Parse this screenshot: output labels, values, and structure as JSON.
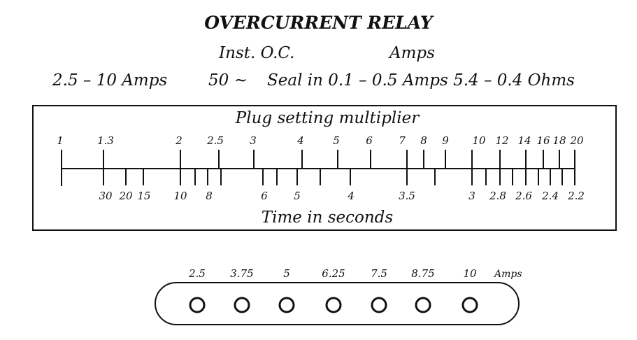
{
  "relay": {
    "title": "OVERCURRENT RELAY",
    "inst_label": "Inst. O.C.",
    "amps_label": "Amps",
    "spec": {
      "range": "2.5 – 10 Amps",
      "frequency": "50 ~",
      "seal_in": "Seal in 0.1 – 0.5 Amps 5.4 – 0.4 Ohms"
    }
  },
  "scale": {
    "title": "Plug setting multiplier",
    "footer": "Time in seconds",
    "psm_labels": [
      "1",
      "1.3",
      "2",
      "2.5",
      "3",
      "4",
      "5",
      "6",
      "7",
      "8",
      "9",
      "10",
      "12",
      "14",
      "16",
      "18",
      "20"
    ],
    "time_labels": [
      "30",
      "20",
      "15",
      "10",
      "8",
      "6",
      "5",
      "4",
      "3.5",
      "3",
      "2.8",
      "2.6",
      "2.4",
      "2.2"
    ]
  },
  "tap_block": {
    "labels": [
      "2.5",
      "3.75",
      "5",
      "6.25",
      "7.5",
      "8.75",
      "10"
    ],
    "unit": "Amps"
  }
}
